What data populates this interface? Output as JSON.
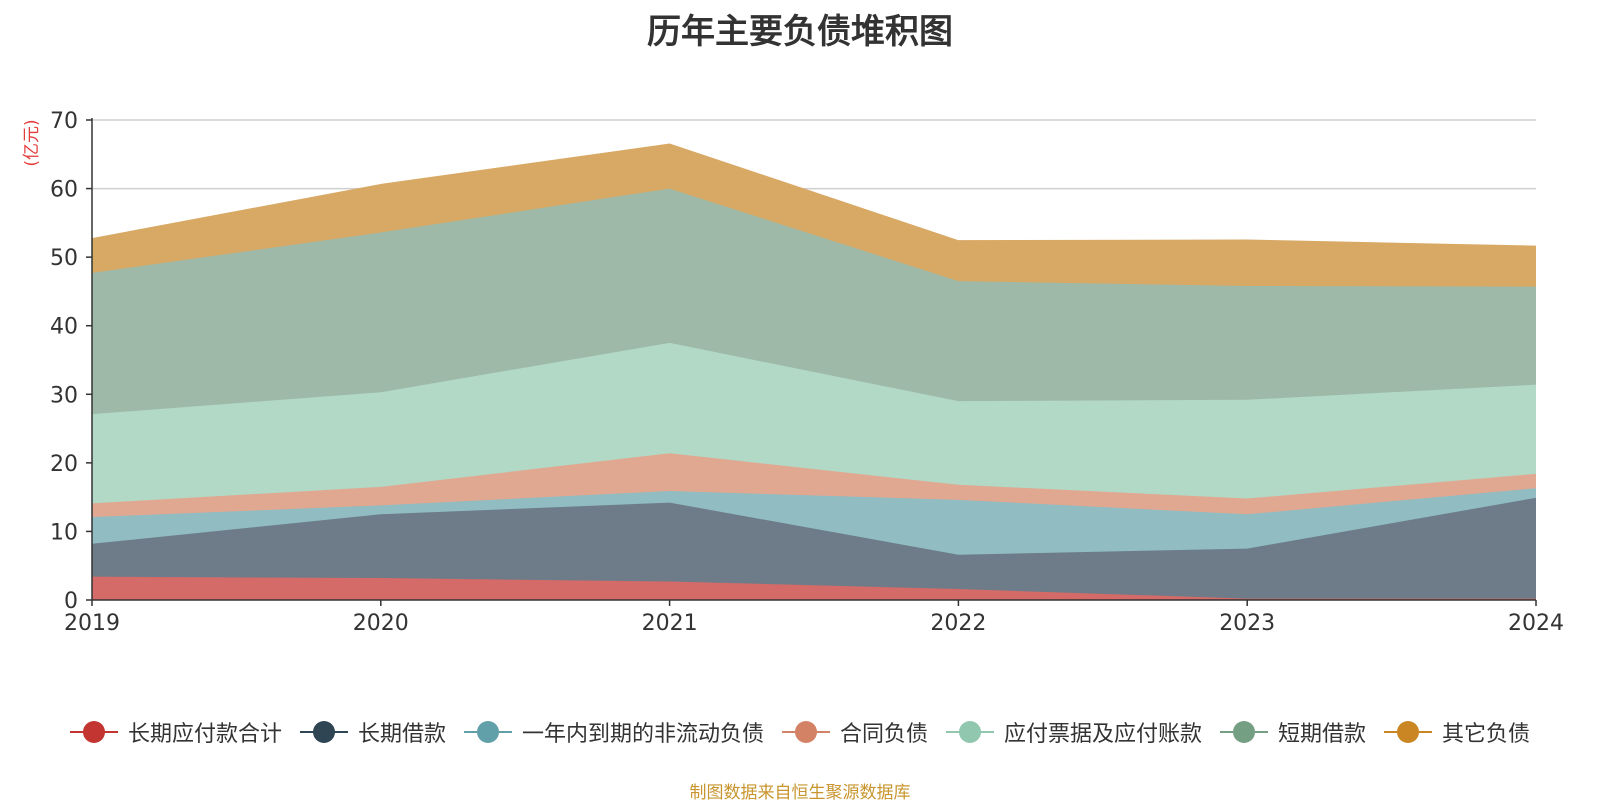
{
  "chart_data": {
    "type": "area",
    "stacked": true,
    "title": "历年主要负债堆积图",
    "unit_label": "(亿元)",
    "x": [
      "2019",
      "2020",
      "2021",
      "2022",
      "2023",
      "2024"
    ],
    "ylim": [
      0,
      70
    ],
    "yticks": [
      0,
      10,
      20,
      30,
      40,
      50,
      60,
      70
    ],
    "grid": true,
    "legend_position": "bottom",
    "series": [
      {
        "name": "长期应付款合计",
        "color": "#c23531",
        "fill": "#d56b68",
        "values": [
          3.4,
          3.2,
          2.7,
          1.6,
          0.2,
          0.2
        ]
      },
      {
        "name": "长期借款",
        "color": "#2f4554",
        "fill": "#6d7c88",
        "values": [
          4.8,
          9.3,
          11.5,
          5.0,
          7.3,
          14.7
        ]
      },
      {
        "name": "一年内到期的非流动负债",
        "color": "#61a0a8",
        "fill": "#90bcc2",
        "values": [
          3.9,
          1.3,
          1.7,
          8.0,
          5.0,
          1.4
        ]
      },
      {
        "name": "合同负债",
        "color": "#d48265",
        "fill": "#e1a891",
        "values": [
          2.0,
          2.7,
          5.5,
          2.2,
          2.3,
          2.1
        ]
      },
      {
        "name": "应付票据及应付账款",
        "color": "#91c7ae",
        "fill": "#b1d9c6",
        "values": [
          13.0,
          13.8,
          16.1,
          12.2,
          14.4,
          13.0
        ]
      },
      {
        "name": "短期借款",
        "color": "#749f83",
        "fill": "#9eb9a7",
        "values": [
          20.6,
          23.3,
          22.5,
          17.5,
          16.6,
          14.3
        ]
      },
      {
        "name": "其它负债",
        "color": "#ca8622",
        "fill": "#d8a964",
        "values": [
          5.0,
          7.0,
          6.5,
          5.9,
          6.7,
          5.9
        ]
      }
    ]
  },
  "source_note": "制图数据来自恒生聚源数据库"
}
